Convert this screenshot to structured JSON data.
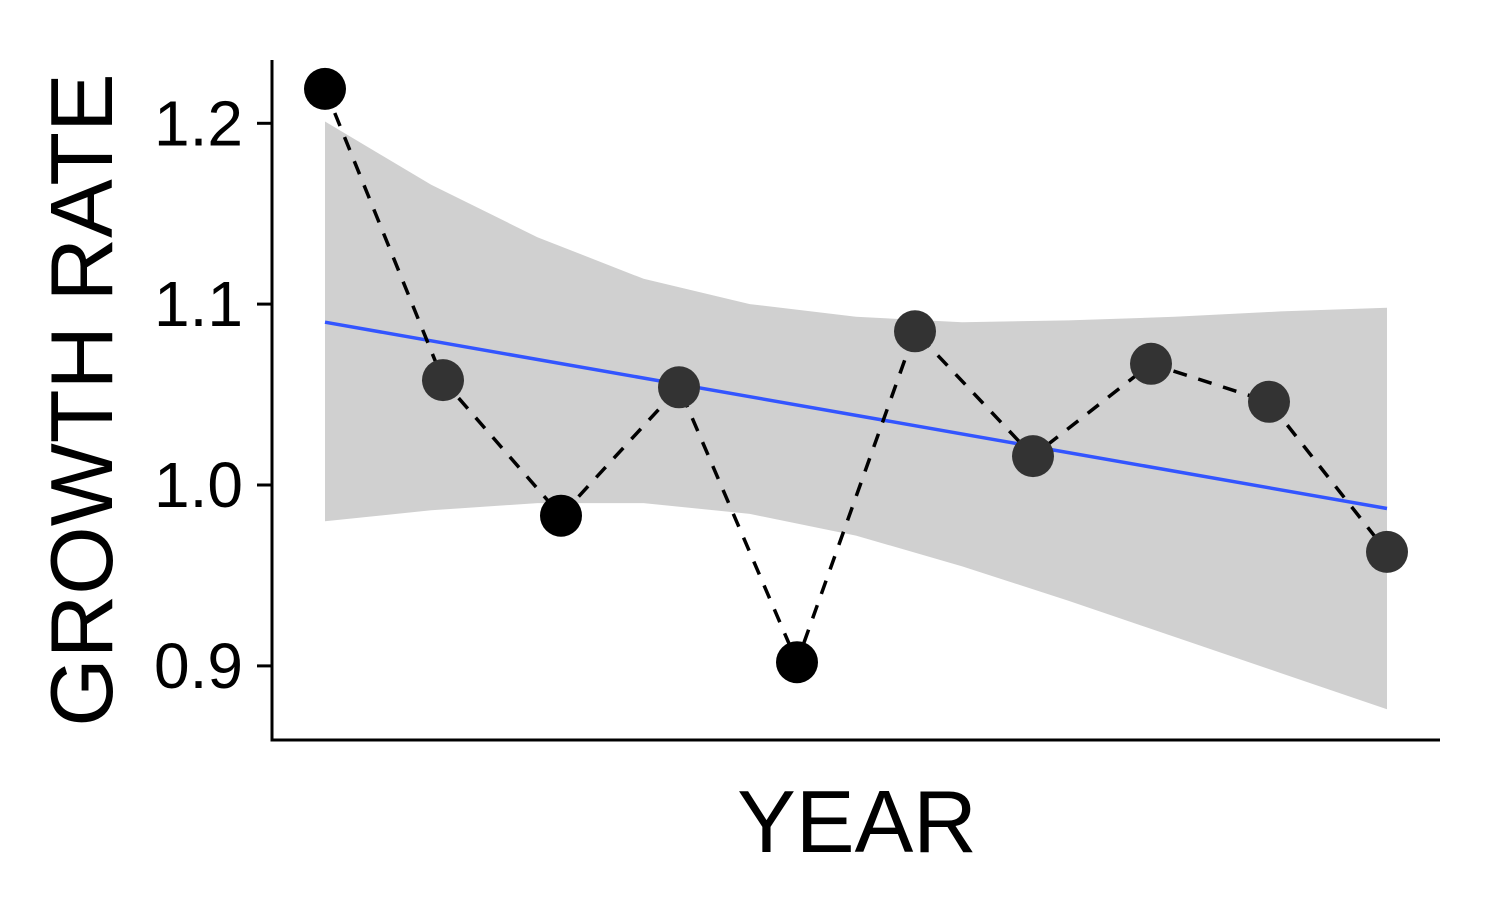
{
  "chart_data": {
    "type": "line",
    "xlabel": "YEAR",
    "ylabel": "GROWTH RATE",
    "ylim": [
      0.859,
      1.235
    ],
    "yticks": [
      0.9,
      1.0,
      1.1,
      1.2
    ],
    "ytick_labels": [
      "0.9",
      "1.0",
      "1.1",
      "1.2"
    ],
    "x_ticks_shown": false,
    "grid": false,
    "legend": "none",
    "series": [
      {
        "values": [
          1.219,
          1.058,
          0.983,
          1.054,
          0.902,
          1.085,
          1.016,
          1.067,
          1.046,
          0.963
        ],
        "line_style": "dashed",
        "color": "#000000"
      }
    ],
    "trend": {
      "type": "linear",
      "start": 1.09,
      "end": 0.987,
      "color": "#3355ff"
    },
    "confidence_band": {
      "upper": [
        1.201,
        1.166,
        1.137,
        1.114,
        1.1,
        1.093,
        1.09,
        1.091,
        1.093,
        1.096,
        1.098
      ],
      "lower": [
        0.98,
        0.986,
        0.99,
        0.99,
        0.984,
        0.972,
        0.955,
        0.936,
        0.916,
        0.896,
        0.876
      ],
      "color": "#d0d0d0"
    },
    "point_colors": [
      "#000000",
      "#333333",
      "#000000",
      "#333333",
      "#000000",
      "#333333",
      "#333333",
      "#333333",
      "#333333",
      "#333333"
    ]
  }
}
